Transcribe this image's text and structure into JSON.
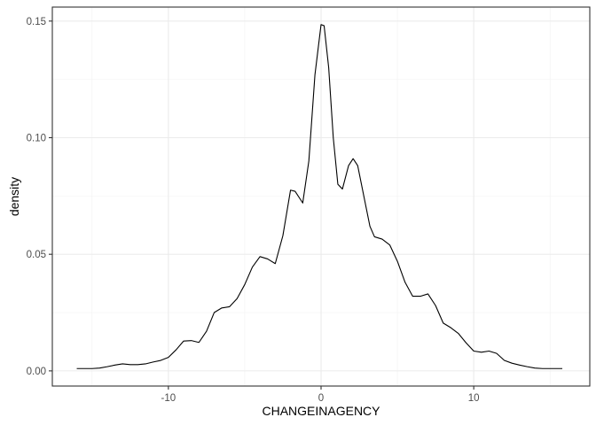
{
  "chart_data": {
    "type": "line",
    "title": "",
    "xlabel": "CHANGEINAGENCY",
    "ylabel": "density",
    "xlim": [
      -17.6,
      17.6
    ],
    "ylim": [
      -0.0065,
      0.156
    ],
    "x_ticks": [
      {
        "value": -10,
        "label": "-10"
      },
      {
        "value": 0,
        "label": "0"
      },
      {
        "value": 10,
        "label": "10"
      }
    ],
    "y_ticks": [
      {
        "value": 0.0,
        "label": "0.00"
      },
      {
        "value": 0.05,
        "label": "0.05"
      },
      {
        "value": 0.1,
        "label": "0.10"
      },
      {
        "value": 0.15,
        "label": "0.15"
      }
    ],
    "grid": true,
    "legend": "none",
    "series": [
      {
        "color": "#000000",
        "points": [
          [
            -16,
            0.001
          ],
          [
            -15,
            0.001
          ],
          [
            -14.5,
            0.0012
          ],
          [
            -14,
            0.0018
          ],
          [
            -13.5,
            0.0025
          ],
          [
            -13,
            0.003
          ],
          [
            -12.5,
            0.0027
          ],
          [
            -12,
            0.0027
          ],
          [
            -11.5,
            0.003
          ],
          [
            -11,
            0.0038
          ],
          [
            -10.5,
            0.0045
          ],
          [
            -10,
            0.0058
          ],
          [
            -9.5,
            0.009
          ],
          [
            -9,
            0.0128
          ],
          [
            -8.5,
            0.013
          ],
          [
            -8,
            0.0122
          ],
          [
            -7.5,
            0.017
          ],
          [
            -7,
            0.025
          ],
          [
            -6.5,
            0.027
          ],
          [
            -6,
            0.0275
          ],
          [
            -5.5,
            0.031
          ],
          [
            -5,
            0.037
          ],
          [
            -4.5,
            0.0445
          ],
          [
            -4,
            0.049
          ],
          [
            -3.5,
            0.048
          ],
          [
            -3,
            0.046
          ],
          [
            -2.5,
            0.058
          ],
          [
            -2,
            0.0775
          ],
          [
            -1.7,
            0.077
          ],
          [
            -1.2,
            0.072
          ],
          [
            -0.8,
            0.09
          ],
          [
            -0.4,
            0.127
          ],
          [
            0,
            0.1485
          ],
          [
            0.2,
            0.148
          ],
          [
            0.5,
            0.13
          ],
          [
            0.8,
            0.1
          ],
          [
            1.1,
            0.08
          ],
          [
            1.4,
            0.078
          ],
          [
            1.8,
            0.088
          ],
          [
            2.1,
            0.091
          ],
          [
            2.4,
            0.088
          ],
          [
            2.8,
            0.075
          ],
          [
            3.2,
            0.062
          ],
          [
            3.5,
            0.0575
          ],
          [
            4,
            0.0565
          ],
          [
            4.5,
            0.054
          ],
          [
            5,
            0.047
          ],
          [
            5.5,
            0.038
          ],
          [
            6,
            0.032
          ],
          [
            6.5,
            0.032
          ],
          [
            7,
            0.033
          ],
          [
            7.5,
            0.028
          ],
          [
            8,
            0.0205
          ],
          [
            8.5,
            0.0185
          ],
          [
            9,
            0.016
          ],
          [
            9.5,
            0.012
          ],
          [
            10,
            0.0085
          ],
          [
            10.5,
            0.008
          ],
          [
            11,
            0.0085
          ],
          [
            11.5,
            0.0075
          ],
          [
            12,
            0.0045
          ],
          [
            12.5,
            0.0033
          ],
          [
            13,
            0.0025
          ],
          [
            13.5,
            0.0018
          ],
          [
            14,
            0.0012
          ],
          [
            14.5,
            0.001
          ],
          [
            15,
            0.001
          ],
          [
            15.8,
            0.001
          ]
        ]
      }
    ]
  }
}
